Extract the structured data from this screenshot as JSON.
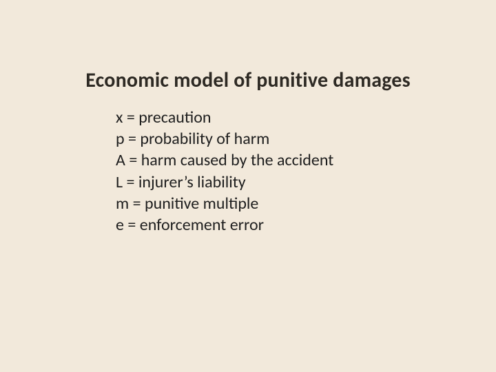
{
  "background_color": "#f2e9db",
  "title": {
    "text": "Economic model of punitive damages",
    "color": "#2e2a24",
    "fontsize": 30,
    "weight": 700
  },
  "definitions": {
    "fontsize": 24,
    "color": "#1e1e1e",
    "lines": [
      "x = precaution",
      "p = probability of harm",
      "A = harm caused by the accident",
      "L = injurer’s liability",
      "m = punitive multiple",
      "e = enforcement error"
    ]
  }
}
